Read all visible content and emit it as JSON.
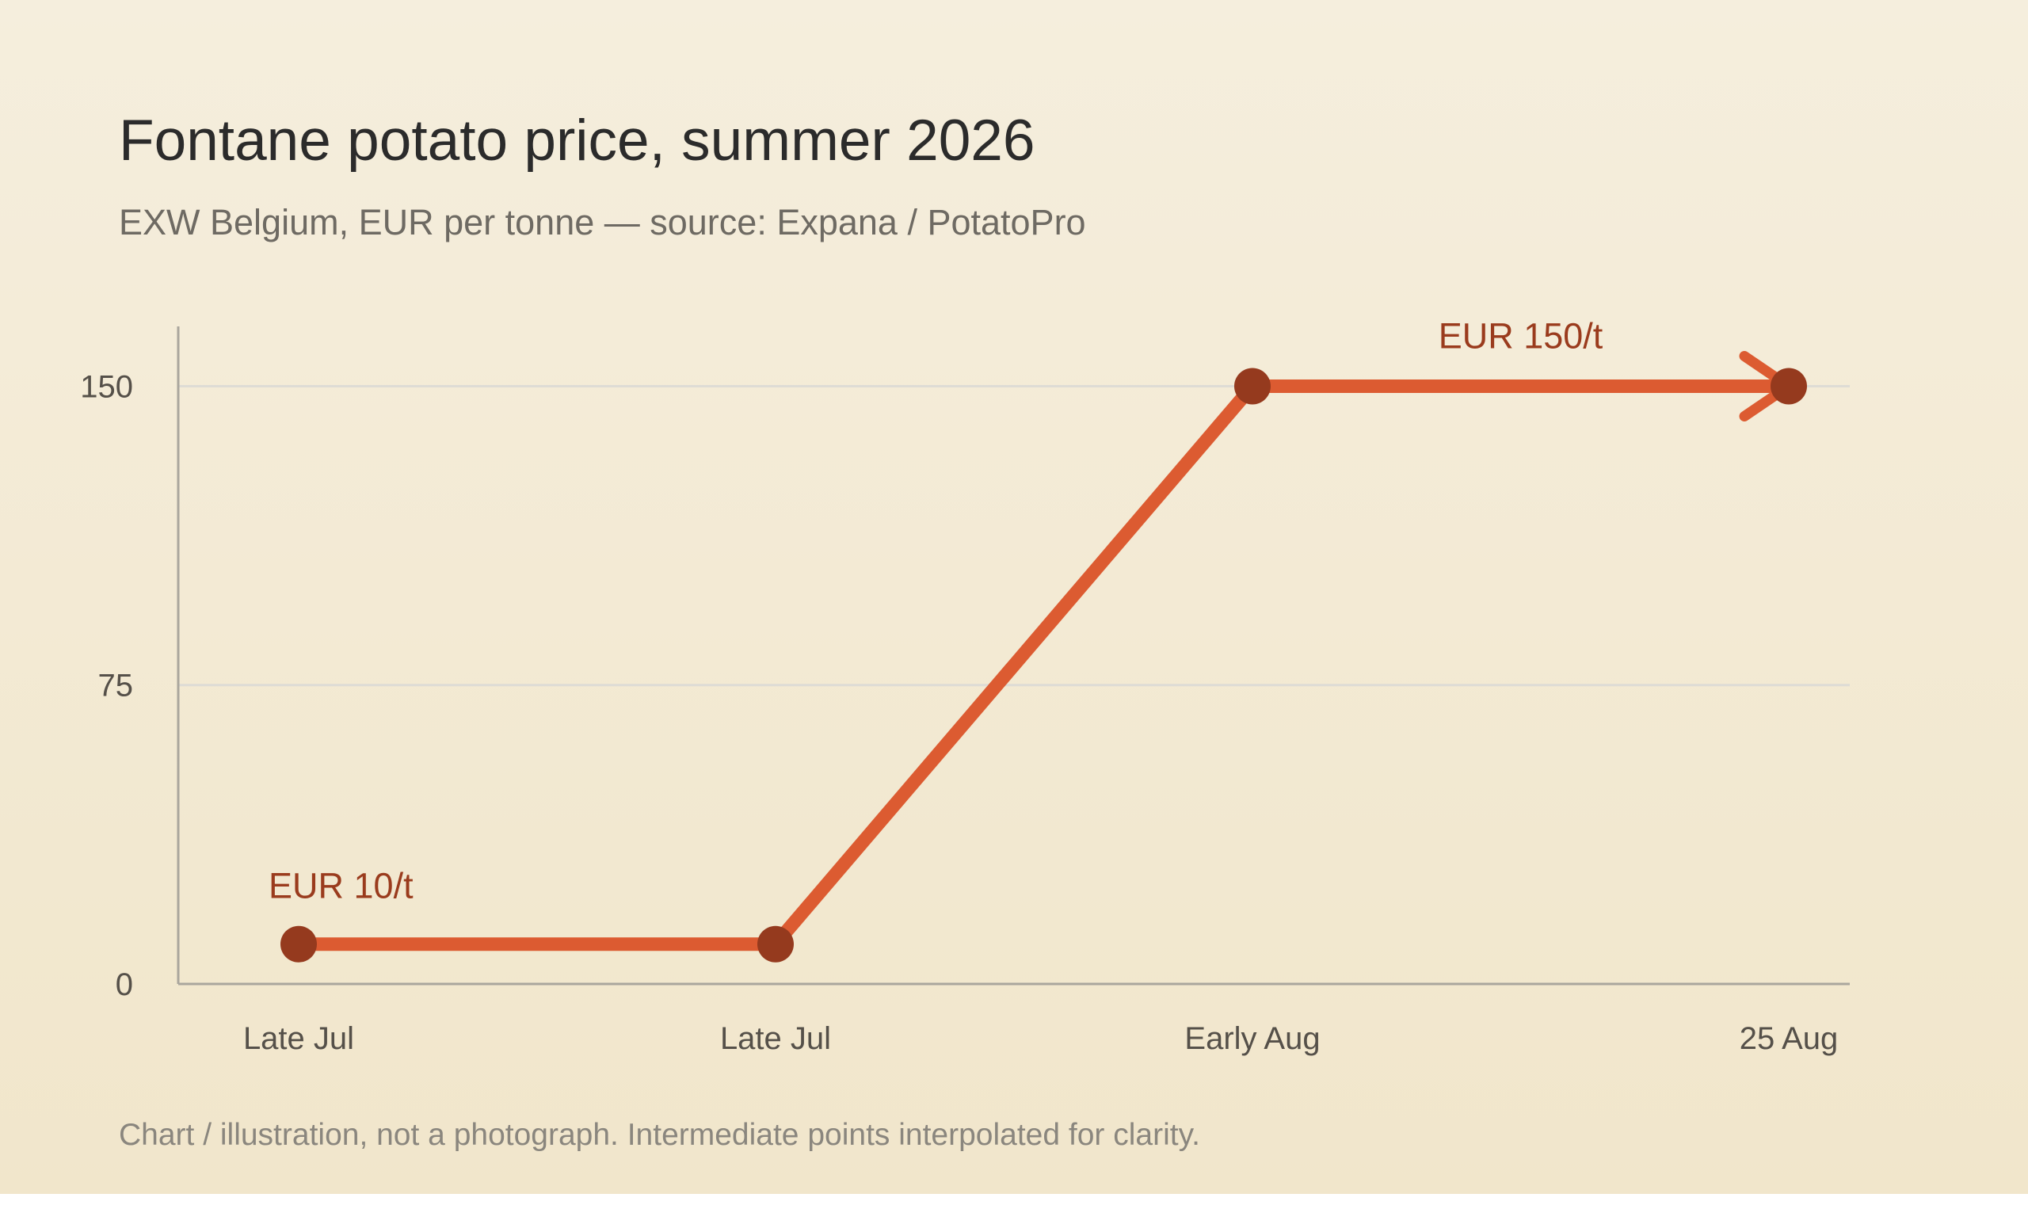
{
  "chart_data": {
    "type": "line",
    "title": "Fontane potato price, summer 2026",
    "subtitle": "EXW Belgium, EUR per tonne — source: Expana / PotatoPro",
    "footnote": "Chart / illustration, not a photograph. Intermediate points interpolated for clarity.",
    "categories": [
      "Late Jul",
      "Late Jul",
      "Early Aug",
      "25 Aug"
    ],
    "values": [
      10,
      10,
      150,
      150
    ],
    "ylim": [
      0,
      165
    ],
    "yticks": [
      0,
      75,
      150
    ],
    "xlabel": "",
    "ylabel": "",
    "grid": true,
    "annotations": [
      {
        "text": "EUR 10/t",
        "point_index": 0
      },
      {
        "text": "EUR 150/t",
        "point_index": 2
      }
    ],
    "end_arrow": true,
    "colors": {
      "line": "#dc5b31",
      "marker": "#953a1e",
      "annotation": "#9a3b1d",
      "grid": "#dedcd5",
      "axis": "#aaa69d"
    }
  }
}
